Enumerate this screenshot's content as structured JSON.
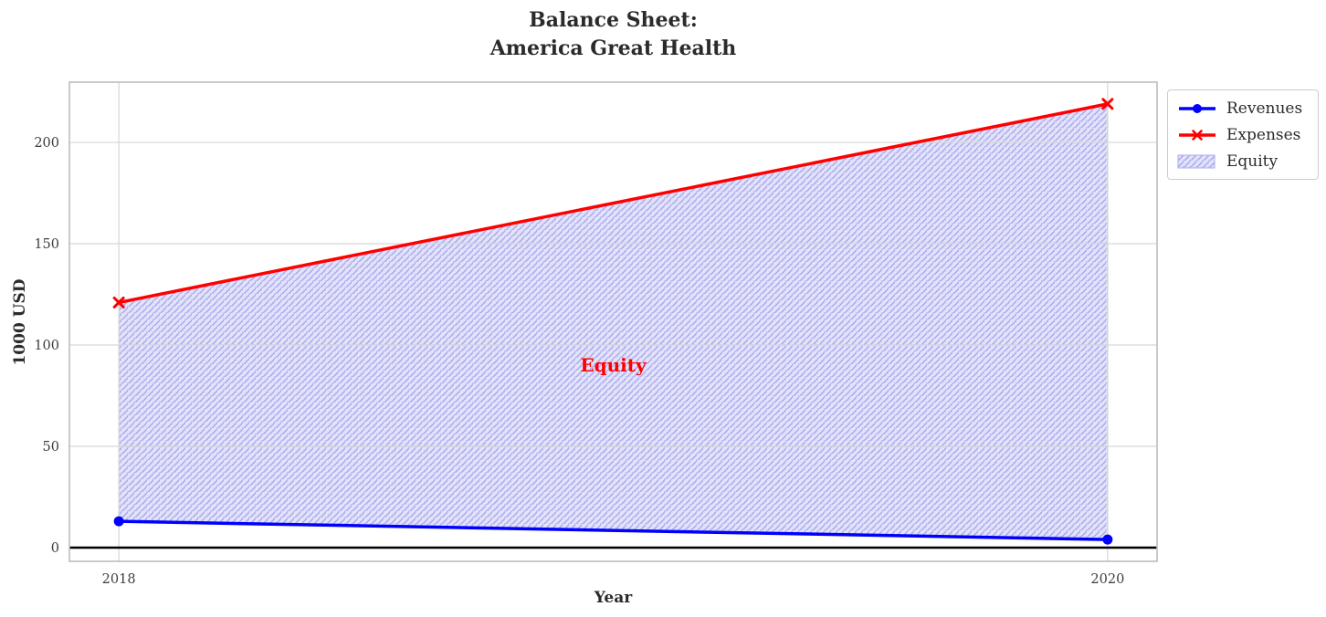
{
  "figure": {
    "title_lines": [
      "Balance Sheet:",
      "America Great Health"
    ],
    "background": "#ffffff"
  },
  "chart_data": {
    "type": "line",
    "title": "Balance Sheet: America Great Health",
    "xlabel": "Year",
    "ylabel": "1000 USD",
    "x": [
      2018,
      2020
    ],
    "xticks": [
      2018,
      2020
    ],
    "yticks": [
      0,
      50,
      100,
      150,
      200
    ],
    "xlim": [
      2017.9,
      2020.1
    ],
    "ylim": [
      -6.75,
      229.75
    ],
    "grid": true,
    "zero_line": true,
    "zero_line_color": "#000000",
    "series": [
      {
        "name": "Revenues",
        "values": [
          13,
          4
        ],
        "color": "#0000ff",
        "marker": "circle",
        "line_width": 3.5
      },
      {
        "name": "Expenses",
        "values": [
          121,
          219
        ],
        "color": "#ff0000",
        "marker": "x",
        "line_width": 3.5
      }
    ],
    "area": {
      "name": "Equity",
      "between": [
        "Revenues",
        "Expenses"
      ],
      "fill_color": "#e2e2f9",
      "hatch_color": "#a9a9ef",
      "hatch_style": "//",
      "label": {
        "text": "Equity",
        "color": "#ff0000",
        "x": 2019,
        "y": 90
      }
    },
    "legend": {
      "position": "upper-right-outside",
      "entries": [
        {
          "label": "Revenues",
          "swatch": "line-circle",
          "color": "#0000ff"
        },
        {
          "label": "Expenses",
          "swatch": "line-x",
          "color": "#ff0000"
        },
        {
          "label": "Equity",
          "swatch": "hatch-patch",
          "color": "#a9a9ef",
          "fill": "#e2e2f9"
        }
      ]
    },
    "colors": {
      "grid": "#d6d6d6",
      "spine": "#bdbdbd",
      "tick_label": "#3d3d3d",
      "title": "#2b2b2b"
    }
  }
}
